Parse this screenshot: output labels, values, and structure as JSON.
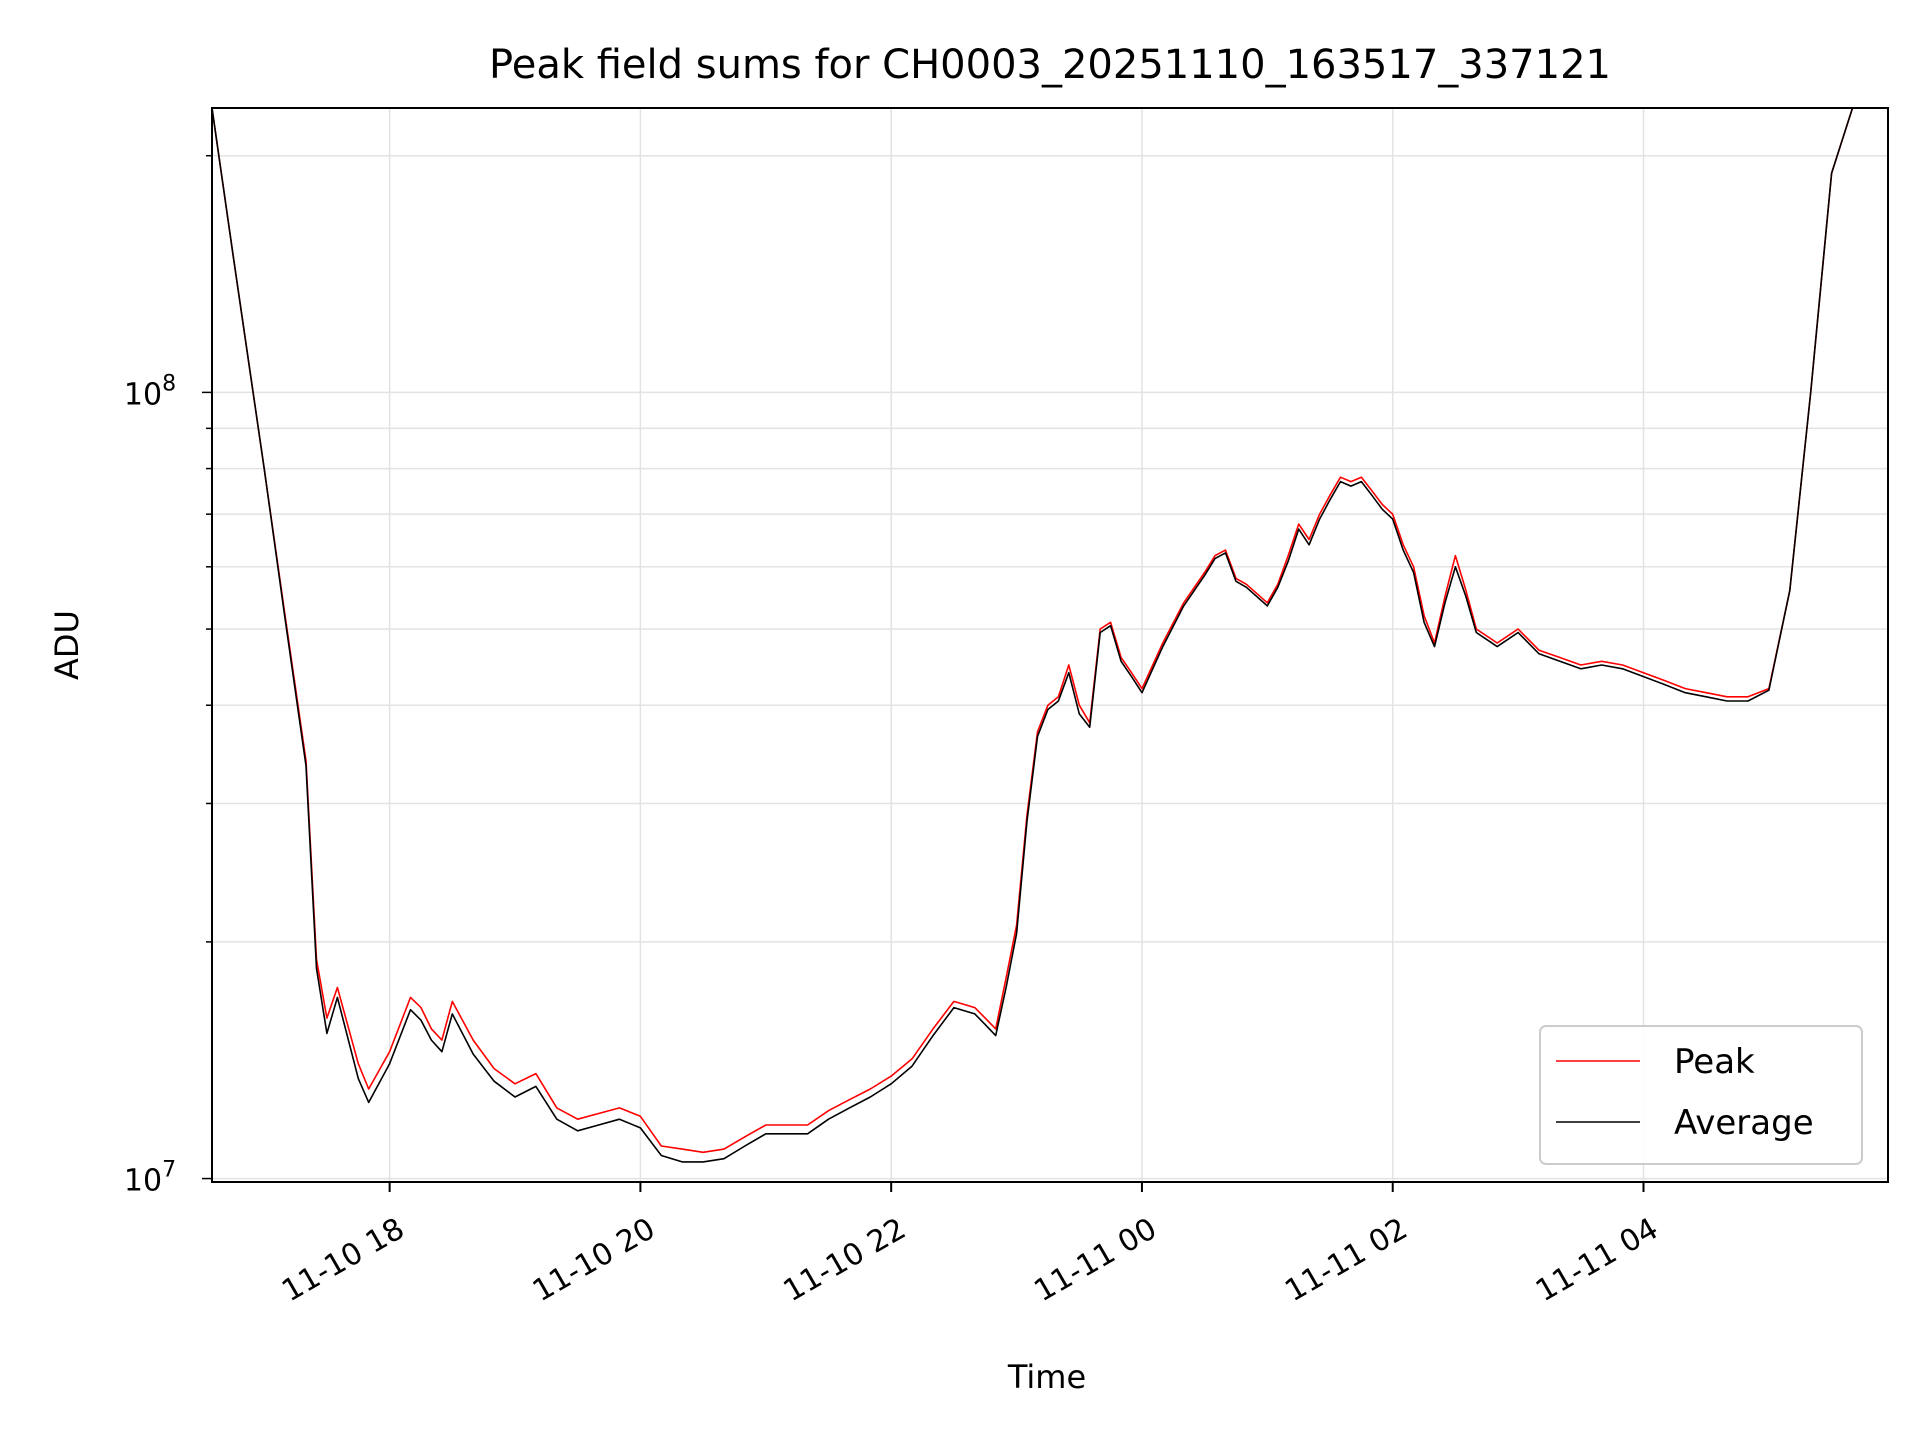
{
  "chart_data": {
    "type": "line",
    "title": "Peak field sums for CH0003_20251110_163517_337121",
    "xlabel": "Time",
    "ylabel": "ADU",
    "yscale": "log",
    "ylim": [
      9900000,
      230000000
    ],
    "xlim": [
      "2025-11-10 16:35",
      "2025-11-11 05:57"
    ],
    "grid": true,
    "legend_position": "lower right",
    "x_ticks": [
      {
        "value": "2025-11-10 18:00",
        "label": "11-10 18"
      },
      {
        "value": "2025-11-10 20:00",
        "label": "11-10 20"
      },
      {
        "value": "2025-11-10 22:00",
        "label": "11-10 22"
      },
      {
        "value": "2025-11-11 00:00",
        "label": "11-11 00"
      },
      {
        "value": "2025-11-11 02:00",
        "label": "11-11 02"
      },
      {
        "value": "2025-11-11 04:00",
        "label": "11-11 04"
      }
    ],
    "y_ticks": [
      {
        "value": 10000000,
        "base": "10",
        "exp": "7"
      },
      {
        "value": 100000000,
        "base": "10",
        "exp": "8"
      }
    ],
    "x": [
      "2025-11-10 16:35",
      "2025-11-10 16:45",
      "2025-11-10 17:00",
      "2025-11-10 17:10",
      "2025-11-10 17:20",
      "2025-11-10 17:25",
      "2025-11-10 17:30",
      "2025-11-10 17:35",
      "2025-11-10 17:45",
      "2025-11-10 17:50",
      "2025-11-10 18:00",
      "2025-11-10 18:10",
      "2025-11-10 18:15",
      "2025-11-10 18:20",
      "2025-11-10 18:25",
      "2025-11-10 18:30",
      "2025-11-10 18:40",
      "2025-11-10 18:50",
      "2025-11-10 19:00",
      "2025-11-10 19:10",
      "2025-11-10 19:20",
      "2025-11-10 19:30",
      "2025-11-10 19:40",
      "2025-11-10 19:50",
      "2025-11-10 20:00",
      "2025-11-10 20:10",
      "2025-11-10 20:20",
      "2025-11-10 20:30",
      "2025-11-10 20:40",
      "2025-11-10 20:50",
      "2025-11-10 21:00",
      "2025-11-10 21:10",
      "2025-11-10 21:20",
      "2025-11-10 21:30",
      "2025-11-10 21:40",
      "2025-11-10 21:50",
      "2025-11-10 22:00",
      "2025-11-10 22:10",
      "2025-11-10 22:20",
      "2025-11-10 22:30",
      "2025-11-10 22:40",
      "2025-11-10 22:45",
      "2025-11-10 22:50",
      "2025-11-10 22:55",
      "2025-11-10 23:00",
      "2025-11-10 23:05",
      "2025-11-10 23:10",
      "2025-11-10 23:15",
      "2025-11-10 23:20",
      "2025-11-10 23:25",
      "2025-11-10 23:30",
      "2025-11-10 23:35",
      "2025-11-10 23:40",
      "2025-11-10 23:45",
      "2025-11-10 23:50",
      "2025-11-10 23:55",
      "2025-11-11 00:00",
      "2025-11-11 00:10",
      "2025-11-11 00:20",
      "2025-11-11 00:30",
      "2025-11-11 00:35",
      "2025-11-11 00:40",
      "2025-11-11 00:45",
      "2025-11-11 00:50",
      "2025-11-11 01:00",
      "2025-11-11 01:05",
      "2025-11-11 01:10",
      "2025-11-11 01:15",
      "2025-11-11 01:20",
      "2025-11-11 01:25",
      "2025-11-11 01:30",
      "2025-11-11 01:35",
      "2025-11-11 01:40",
      "2025-11-11 01:45",
      "2025-11-11 01:50",
      "2025-11-11 01:55",
      "2025-11-11 02:00",
      "2025-11-11 02:05",
      "2025-11-11 02:10",
      "2025-11-11 02:15",
      "2025-11-11 02:20",
      "2025-11-11 02:25",
      "2025-11-11 02:30",
      "2025-11-11 02:35",
      "2025-11-11 02:40",
      "2025-11-11 02:50",
      "2025-11-11 03:00",
      "2025-11-11 03:10",
      "2025-11-11 03:20",
      "2025-11-11 03:30",
      "2025-11-11 03:40",
      "2025-11-11 03:50",
      "2025-11-11 04:00",
      "2025-11-11 04:10",
      "2025-11-11 04:20",
      "2025-11-11 04:30",
      "2025-11-11 04:40",
      "2025-11-11 04:50",
      "2025-11-11 05:00",
      "2025-11-11 05:10",
      "2025-11-11 05:20",
      "2025-11-11 05:30",
      "2025-11-11 05:40",
      "2025-11-11 05:50",
      "2025-11-11 05:57"
    ],
    "series": [
      {
        "name": "Peak",
        "color": "#ff0000",
        "values": [
          230000000,
          150000000,
          80000000,
          52000000,
          34000000,
          19000000,
          16000000,
          17500000,
          14000000,
          13000000,
          14500000,
          17000000,
          16500000,
          15500000,
          15000000,
          16800000,
          15000000,
          13800000,
          13200000,
          13600000,
          12300000,
          11900000,
          12100000,
          12300000,
          12000000,
          11000000,
          10900000,
          10800000,
          10900000,
          11300000,
          11700000,
          11700000,
          11700000,
          12200000,
          12600000,
          13000000,
          13500000,
          14200000,
          15500000,
          16800000,
          16500000,
          16000000,
          15500000,
          18000000,
          21000000,
          29000000,
          37000000,
          40000000,
          41000000,
          45000000,
          40000000,
          38000000,
          50000000,
          51000000,
          46000000,
          44000000,
          42000000,
          48000000,
          54000000,
          59000000,
          62000000,
          63000000,
          58000000,
          57000000,
          54000000,
          57000000,
          62000000,
          68000000,
          65000000,
          70000000,
          74000000,
          78000000,
          77000000,
          78000000,
          75000000,
          72000000,
          70000000,
          64000000,
          60000000,
          52000000,
          48000000,
          55000000,
          62000000,
          56000000,
          50000000,
          48000000,
          50000000,
          47000000,
          46000000,
          45000000,
          45500000,
          45000000,
          44000000,
          43000000,
          42000000,
          41500000,
          41000000,
          41000000,
          42000000,
          56000000,
          100000000,
          190000000,
          230000000,
          230000000,
          230000000
        ]
      },
      {
        "name": "Average",
        "color": "#000000",
        "values": [
          230000000,
          150000000,
          80000000,
          51500000,
          33500000,
          18500000,
          15300000,
          17000000,
          13400000,
          12500000,
          14000000,
          16400000,
          15900000,
          15000000,
          14500000,
          16200000,
          14400000,
          13300000,
          12700000,
          13100000,
          11900000,
          11500000,
          11700000,
          11900000,
          11600000,
          10700000,
          10500000,
          10500000,
          10600000,
          11000000,
          11400000,
          11400000,
          11400000,
          11900000,
          12300000,
          12700000,
          13200000,
          13900000,
          15200000,
          16500000,
          16200000,
          15700000,
          15200000,
          17500000,
          20500000,
          28500000,
          36500000,
          39500000,
          40500000,
          44000000,
          39000000,
          37500000,
          49500000,
          50500000,
          45500000,
          43500000,
          41500000,
          47500000,
          53500000,
          58500000,
          61500000,
          62500000,
          57500000,
          56500000,
          53500000,
          56500000,
          61000000,
          67000000,
          64000000,
          69000000,
          73000000,
          77000000,
          76000000,
          77000000,
          74000000,
          71000000,
          69000000,
          63000000,
          59000000,
          51000000,
          47500000,
          54000000,
          60000000,
          55000000,
          49500000,
          47500000,
          49500000,
          46500000,
          45500000,
          44500000,
          45000000,
          44500000,
          43500000,
          42500000,
          41500000,
          41000000,
          40500000,
          40500000,
          41800000,
          56000000,
          100000000,
          190000000,
          230000000,
          230000000,
          230000000
        ]
      }
    ]
  }
}
